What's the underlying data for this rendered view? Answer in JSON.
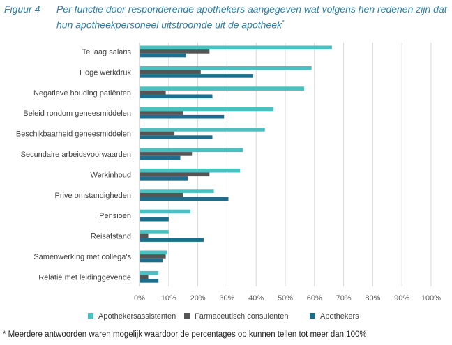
{
  "figure": {
    "label": "Figuur 4",
    "title": "Per functie door responderende apothekers aangegeven wat volgens hen redenen zijn dat hun apotheekpersoneel uitstroomde uit de apotheek",
    "title_mark": "*"
  },
  "footnote": "* Meerdere antwoorden waren mogelijk waardoor de percentages op kunnen tellen tot meer dan 100%",
  "chart_data": {
    "type": "bar",
    "orientation": "horizontal",
    "categories": [
      "Te laag salaris",
      "Hoge werkdruk",
      "Negatieve houding patiënten",
      "Beleid rondom geneesmiddelen",
      "Beschikbaarheid geneesmiddelen",
      "Secundaire arbeidsvoorwaarden",
      "Werkinhoud",
      "Prive omstandigheden",
      "Pensioen",
      "Reisafstand",
      "Samenwerking met collega's",
      "Relatie met leidinggevende"
    ],
    "series": [
      {
        "name": "Apothekersassistenten",
        "color": "#4bc0c0",
        "values": [
          66,
          59,
          56.5,
          46,
          43,
          35.5,
          34.5,
          25.5,
          17.5,
          10,
          9.5,
          6.5
        ]
      },
      {
        "name": "Farmaceutisch consulenten",
        "color": "#555555",
        "values": [
          24,
          21,
          9,
          15,
          12,
          18,
          24,
          15,
          0,
          3,
          9,
          3
        ]
      },
      {
        "name": "Apothekers",
        "color": "#1c6e8c",
        "values": [
          16,
          39,
          25,
          29,
          25,
          14,
          16.5,
          30.5,
          10,
          22,
          8,
          6.5
        ]
      }
    ],
    "x_ticks": [
      "0%",
      "10%",
      "20%",
      "30%",
      "40%",
      "50%",
      "60%",
      "70%",
      "80%",
      "90%",
      "100%"
    ],
    "xlim": [
      0,
      100
    ],
    "grid": true,
    "legend_position": "bottom"
  }
}
